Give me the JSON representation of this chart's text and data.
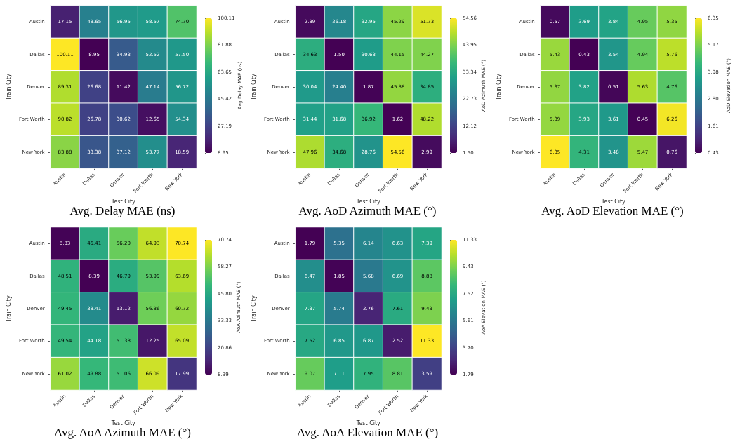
{
  "chart_data": [
    {
      "type": "heatmap",
      "title": "Avg. Delay MAE (ns)",
      "xlabel": "Test City",
      "ylabel": "Train City",
      "clabel": "Avg Delay MAE (ns)",
      "categories": [
        "Austin",
        "Dallas",
        "Denver",
        "Fort Worth",
        "New York"
      ],
      "y_categories": [
        "Austin",
        "Dallas",
        "Denver",
        "Fort Worth",
        "New York"
      ],
      "cells": [
        [
          17.15,
          48.65,
          56.95,
          58.57,
          74.7
        ],
        [
          100.11,
          8.95,
          34.93,
          52.52,
          57.5
        ],
        [
          89.31,
          26.68,
          11.42,
          47.14,
          56.72
        ],
        [
          90.82,
          26.78,
          30.62,
          12.65,
          54.34
        ],
        [
          83.88,
          33.38,
          37.12,
          53.77,
          18.59
        ]
      ],
      "cell_labels": [
        [
          "17.15",
          "48.65",
          "56.95",
          "58.57",
          "74.70"
        ],
        [
          "100.11",
          "8.95",
          "34.93",
          "52.52",
          "57.50"
        ],
        [
          "89.31",
          "26.68",
          "11.42",
          "47.14",
          "56.72"
        ],
        [
          "90.82",
          "26.78",
          "30.62",
          "12.65",
          "54.34"
        ],
        [
          "83.88",
          "33.38",
          "37.12",
          "53.77",
          "18.59"
        ]
      ],
      "clim": [
        8.95,
        100.11
      ],
      "cticks": [
        8.95,
        27.19,
        45.42,
        63.65,
        81.88,
        100.11
      ]
    },
    {
      "type": "heatmap",
      "title": "Avg. AoD Azimuth MAE (°)",
      "xlabel": "Test City",
      "ylabel": "Train City",
      "clabel": "AoD Azimuth MAE (°)",
      "categories": [
        "Austin",
        "Dallas",
        "Denver",
        "Fort Worth",
        "New York"
      ],
      "y_categories": [
        "Austin",
        "Dallas",
        "Denver",
        "Fort Worth",
        "New York"
      ],
      "cells": [
        [
          2.89,
          26.18,
          32.95,
          45.29,
          51.73
        ],
        [
          34.63,
          1.5,
          30.63,
          44.15,
          44.27
        ],
        [
          30.04,
          24.4,
          1.87,
          45.88,
          34.85
        ],
        [
          31.44,
          31.68,
          36.92,
          1.62,
          48.22
        ],
        [
          47.96,
          34.68,
          28.76,
          54.56,
          2.99
        ]
      ],
      "cell_labels": [
        [
          "2.89",
          "26.18",
          "32.95",
          "45.29",
          "51.73"
        ],
        [
          "34.63",
          "1.50",
          "30.63",
          "44.15",
          "44.27"
        ],
        [
          "30.04",
          "24.40",
          "1.87",
          "45.88",
          "34.85"
        ],
        [
          "31.44",
          "31.68",
          "36.92",
          "1.62",
          "48.22"
        ],
        [
          "47.96",
          "34.68",
          "28.76",
          "54.56",
          "2.99"
        ]
      ],
      "clim": [
        1.5,
        54.56
      ],
      "cticks": [
        {
          "value": 1.5,
          "label": "1.50"
        },
        12.12,
        22.73,
        33.34,
        43.95,
        54.56
      ]
    },
    {
      "type": "heatmap",
      "title": "Avg. AoD Elevation MAE (°)",
      "xlabel": "Test City",
      "ylabel": "Train City",
      "clabel": "AoD Elevation MAE (°)",
      "categories": [
        "Austin",
        "Dallas",
        "Denver",
        "Fort Worth",
        "New York"
      ],
      "y_categories": [
        "Austin",
        "Dallas",
        "Denver",
        "Fort Worth",
        "New York"
      ],
      "cells": [
        [
          0.57,
          3.69,
          3.84,
          4.95,
          5.35
        ],
        [
          5.43,
          0.43,
          3.54,
          4.94,
          5.76
        ],
        [
          5.37,
          3.82,
          0.51,
          5.63,
          4.76
        ],
        [
          5.39,
          3.93,
          3.61,
          0.45,
          6.26
        ],
        [
          6.35,
          4.31,
          3.48,
          5.47,
          0.76
        ]
      ],
      "cell_labels": [
        [
          "0.57",
          "3.69",
          "3.84",
          "4.95",
          "5.35"
        ],
        [
          "5.43",
          "0.43",
          "3.54",
          "4.94",
          "5.76"
        ],
        [
          "5.37",
          "3.82",
          "0.51",
          "5.63",
          "4.76"
        ],
        [
          "5.39",
          "3.93",
          "3.61",
          "0.45",
          "6.26"
        ],
        [
          "6.35",
          "4.31",
          "3.48",
          "5.47",
          "0.76"
        ]
      ],
      "clim": [
        0.43,
        6.35
      ],
      "cticks": [
        0.43,
        1.61,
        {
          "value": 2.8,
          "label": "2.80"
        },
        3.98,
        5.17,
        6.35
      ]
    },
    {
      "type": "heatmap",
      "title": "Avg. AoA Azimuth MAE (°)",
      "xlabel": "Test City",
      "ylabel": "Train City",
      "clabel": "AoA Azimuth MAE (°)",
      "categories": [
        "Austin",
        "Dallas",
        "Denver",
        "Fort Worth",
        "New York"
      ],
      "y_categories": [
        "Austin",
        "Dallas",
        "Denver",
        "Fort Worth",
        "New York"
      ],
      "cells": [
        [
          8.83,
          46.41,
          56.2,
          64.93,
          70.74
        ],
        [
          48.51,
          8.39,
          46.79,
          53.99,
          63.69
        ],
        [
          49.45,
          38.41,
          13.12,
          56.86,
          60.72
        ],
        [
          49.54,
          44.18,
          51.38,
          12.25,
          65.09
        ],
        [
          61.02,
          49.88,
          51.06,
          66.09,
          17.99
        ]
      ],
      "cell_labels": [
        [
          "8.83",
          "46.41",
          "56.20",
          "64.93",
          "70.74"
        ],
        [
          "48.51",
          "8.39",
          "46.79",
          "53.99",
          "63.69"
        ],
        [
          "49.45",
          "38.41",
          "13.12",
          "56.86",
          "60.72"
        ],
        [
          "49.54",
          "44.18",
          "51.38",
          "12.25",
          "65.09"
        ],
        [
          "61.02",
          "49.88",
          "51.06",
          "66.09",
          "17.99"
        ]
      ],
      "clim": [
        8.39,
        70.74
      ],
      "cticks": [
        8.39,
        20.86,
        33.33,
        {
          "value": 45.8,
          "label": "45.80"
        },
        58.27,
        70.74
      ]
    },
    {
      "type": "heatmap",
      "title": "Avg. AoA Elevation MAE (°)",
      "xlabel": "Test City",
      "ylabel": "Train City",
      "clabel": "AoA Elevation MAE (°)",
      "categories": [
        "Austin",
        "Dallas",
        "Denver",
        "Fort Worth",
        "New York"
      ],
      "y_categories": [
        "Austin",
        "Dallas",
        "Denver",
        "Fort Worth",
        "New York"
      ],
      "cells": [
        [
          1.79,
          5.35,
          6.14,
          6.63,
          7.39
        ],
        [
          6.47,
          1.85,
          5.68,
          6.69,
          8.88
        ],
        [
          7.37,
          5.74,
          2.76,
          7.61,
          9.43
        ],
        [
          7.52,
          6.85,
          6.87,
          2.52,
          11.33
        ],
        [
          9.07,
          7.11,
          7.95,
          8.81,
          3.59
        ]
      ],
      "cell_labels": [
        [
          "1.79",
          "5.35",
          "6.14",
          "6.63",
          "7.39"
        ],
        [
          "6.47",
          "1.85",
          "5.68",
          "6.69",
          "8.88"
        ],
        [
          "7.37",
          "5.74",
          "2.76",
          "7.61",
          "9.43"
        ],
        [
          "7.52",
          "6.85",
          "6.87",
          "2.52",
          "11.33"
        ],
        [
          "9.07",
          "7.11",
          "7.95",
          "8.81",
          "3.59"
        ]
      ],
      "clim": [
        1.79,
        11.33
      ],
      "cticks": [
        1.79,
        {
          "value": 3.7,
          "label": "3.70"
        },
        5.61,
        7.52,
        9.43,
        11.33
      ]
    }
  ]
}
